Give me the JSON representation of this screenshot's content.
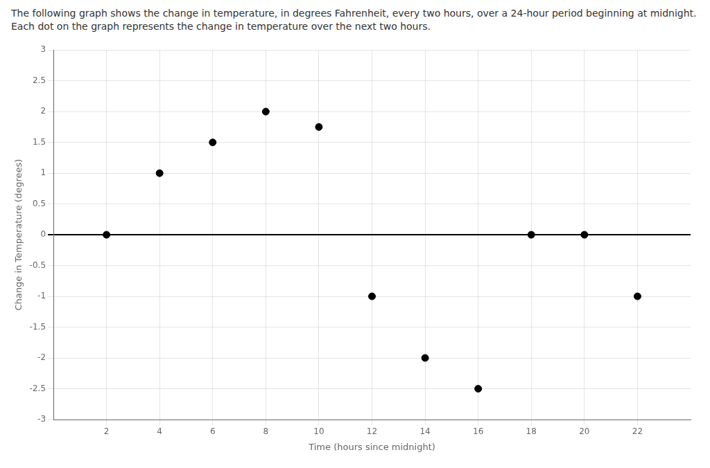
{
  "chart_data": {
    "type": "scatter",
    "title": "The following graph shows the change in temperature, in degrees Fahrenheit, every two hours, over a 24-hour period beginning at midnight. Each dot on the graph represents the change in temperature over the next two hours.",
    "x": [
      2,
      4,
      6,
      8,
      10,
      12,
      14,
      16,
      18,
      20,
      22
    ],
    "values": [
      0,
      1,
      1.5,
      2,
      1.75,
      -1,
      -2,
      -2.5,
      0,
      0,
      -1
    ],
    "xlabel": "Time (hours since midnight)",
    "ylabel": "Change in Temperature (degrees)",
    "xlim": [
      0,
      24
    ],
    "ylim": [
      -3,
      3
    ],
    "xticks": [
      2,
      4,
      6,
      8,
      10,
      12,
      14,
      16,
      18,
      20,
      22
    ],
    "yticks": [
      -3,
      -2.5,
      -2,
      -1.5,
      -1,
      -0.5,
      0,
      0.5,
      1,
      1.5,
      2,
      2.5,
      3
    ],
    "color": "black",
    "grid": true
  }
}
